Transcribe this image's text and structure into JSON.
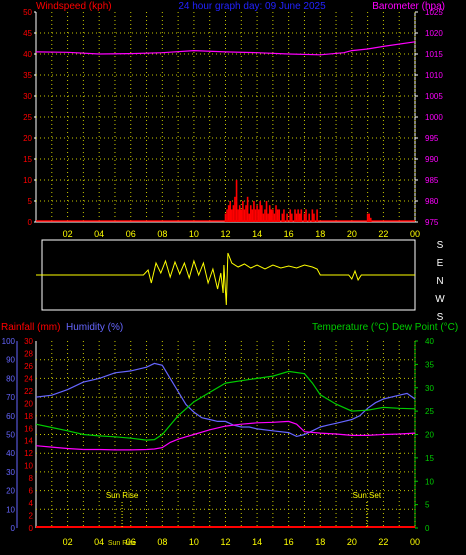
{
  "title": "24 hour graph day: 09 June 2025",
  "colors": {
    "background": "#000000",
    "grid": "#c8c800",
    "wind": "#ff0000",
    "baro": "#ff00ff",
    "dir": "#ffff00",
    "rain": "#ff0000",
    "humidity": "#6666ff",
    "temperature": "#00cc00",
    "dew": "#ff00ff",
    "title": "#2222ff",
    "hour": "#ffff00",
    "axis": "#ffffff"
  },
  "hour_labels": [
    "02",
    "04",
    "06",
    "08",
    "10",
    "12",
    "14",
    "16",
    "18",
    "20",
    "22",
    "00"
  ],
  "chart_data": [
    {
      "type": "bar",
      "title": "24 hour graph day: 09 June 2025",
      "left_axis_label": "Windspeed (kph)",
      "right_axis_label": "Barometer (hpa)",
      "x_ticks": [
        "02",
        "04",
        "06",
        "08",
        "10",
        "12",
        "14",
        "16",
        "18",
        "20",
        "22",
        "00"
      ],
      "ylim_left": [
        0,
        50
      ],
      "yticks_left": [
        "0",
        "5",
        "10",
        "15",
        "20",
        "25",
        "30",
        "35",
        "40",
        "45",
        "50"
      ],
      "ylim_right": [
        975,
        1025
      ],
      "yticks_right": [
        "975",
        "980",
        "985",
        "990",
        "995",
        "1000",
        "1005",
        "1010",
        "1015",
        "1020",
        "1025"
      ],
      "grid": true,
      "wind_bars": [
        [
          12.0,
          2
        ],
        [
          12.1,
          3
        ],
        [
          12.2,
          4
        ],
        [
          12.3,
          5
        ],
        [
          12.4,
          3
        ],
        [
          12.5,
          4
        ],
        [
          12.6,
          6
        ],
        [
          12.7,
          10
        ],
        [
          12.8,
          3
        ],
        [
          12.9,
          4
        ],
        [
          13.0,
          3
        ],
        [
          13.1,
          5
        ],
        [
          13.2,
          3
        ],
        [
          13.3,
          4
        ],
        [
          13.4,
          6
        ],
        [
          13.5,
          2
        ],
        [
          13.6,
          4
        ],
        [
          13.7,
          3
        ],
        [
          13.8,
          5
        ],
        [
          13.9,
          3
        ],
        [
          14.0,
          4
        ],
        [
          14.1,
          3
        ],
        [
          14.2,
          5
        ],
        [
          14.3,
          4
        ],
        [
          14.4,
          2
        ],
        [
          14.5,
          3
        ],
        [
          14.6,
          5
        ],
        [
          14.7,
          2
        ],
        [
          14.8,
          4
        ],
        [
          14.9,
          3
        ],
        [
          15.0,
          3
        ],
        [
          15.1,
          2
        ],
        [
          15.2,
          4
        ],
        [
          15.3,
          3
        ],
        [
          15.4,
          3
        ],
        [
          15.6,
          2
        ],
        [
          15.7,
          3
        ],
        [
          15.9,
          2
        ],
        [
          16.1,
          3
        ],
        [
          16.2,
          2
        ],
        [
          16.4,
          3
        ],
        [
          16.5,
          2
        ],
        [
          16.6,
          3
        ],
        [
          16.7,
          2
        ],
        [
          16.8,
          3
        ],
        [
          17.0,
          2
        ],
        [
          17.1,
          3
        ],
        [
          17.3,
          2
        ],
        [
          17.5,
          3
        ],
        [
          17.6,
          2
        ],
        [
          17.8,
          3
        ],
        [
          21.0,
          2
        ],
        [
          21.1,
          2
        ],
        [
          21.2,
          1
        ]
      ],
      "barometer": [
        [
          0,
          1015.5
        ],
        [
          2,
          1015.4
        ],
        [
          4,
          1015.0
        ],
        [
          6,
          1015.1
        ],
        [
          8,
          1015.3
        ],
        [
          10,
          1015.8
        ],
        [
          12,
          1015.5
        ],
        [
          14,
          1015.3
        ],
        [
          16,
          1015.0
        ],
        [
          18,
          1014.8
        ],
        [
          19.5,
          1015.3
        ],
        [
          20,
          1015.8
        ],
        [
          21,
          1016.2
        ],
        [
          22,
          1016.8
        ],
        [
          24,
          1017.9
        ]
      ]
    },
    {
      "type": "line",
      "right_side_labels": [
        "S",
        "E",
        "N",
        "W",
        "S"
      ],
      "wind_direction_trace": [
        [
          0,
          0
        ],
        [
          6.8,
          0
        ],
        [
          7.1,
          5
        ],
        [
          7.3,
          -8
        ],
        [
          7.6,
          12
        ],
        [
          7.9,
          2
        ],
        [
          8.2,
          14
        ],
        [
          8.5,
          -2
        ],
        [
          8.8,
          13
        ],
        [
          9.1,
          1
        ],
        [
          9.4,
          12
        ],
        [
          9.7,
          -3
        ],
        [
          10.0,
          14
        ],
        [
          10.3,
          0
        ],
        [
          10.6,
          12
        ],
        [
          10.9,
          -8
        ],
        [
          11.2,
          6
        ],
        [
          11.5,
          -14
        ],
        [
          11.7,
          2
        ],
        [
          11.85,
          -18
        ],
        [
          11.9,
          10
        ],
        [
          12.05,
          -30
        ],
        [
          12.15,
          22
        ],
        [
          12.4,
          12
        ],
        [
          12.8,
          8
        ],
        [
          13.2,
          11
        ],
        [
          13.6,
          7
        ],
        [
          14.0,
          10
        ],
        [
          14.5,
          6
        ],
        [
          15.0,
          10
        ],
        [
          15.5,
          7
        ],
        [
          16.0,
          9
        ],
        [
          16.5,
          7
        ],
        [
          17.0,
          10
        ],
        [
          17.5,
          8
        ],
        [
          17.8,
          6
        ],
        [
          18.0,
          0
        ],
        [
          19.8,
          0
        ],
        [
          20.0,
          -4
        ],
        [
          20.2,
          4
        ],
        [
          20.4,
          -5
        ],
        [
          20.6,
          0
        ],
        [
          24,
          0
        ]
      ]
    },
    {
      "type": "line",
      "left_axis_label": "Rainfall (mm)",
      "left_axis2_label": "Humidity (%)",
      "right_axis_label": "Temperature (°C)",
      "right_axis2_label": "Dew Point (°C)",
      "x_ticks": [
        "02",
        "04",
        "06",
        "08",
        "10",
        "12",
        "14",
        "16",
        "18",
        "20",
        "22",
        "00"
      ],
      "ylim_humidity": [
        0,
        100
      ],
      "yticks_humidity": [
        "0",
        "10",
        "20",
        "30",
        "40",
        "50",
        "60",
        "70",
        "80",
        "90",
        "100"
      ],
      "ylim_rain": [
        0,
        30
      ],
      "yticks_rain": [
        "0",
        "2",
        "4",
        "6",
        "8",
        "10",
        "12",
        "14",
        "16",
        "18",
        "20",
        "22",
        "24",
        "26",
        "28",
        "30"
      ],
      "ylim_temp": [
        0,
        40
      ],
      "yticks_temp": [
        "0",
        "5",
        "10",
        "15",
        "20",
        "25",
        "30",
        "35",
        "40"
      ],
      "annotations": [
        {
          "text": "Sun Rise",
          "x": 5.45
        },
        {
          "text": "Sun Set",
          "x": 20.95
        }
      ],
      "extra_label": "Sun Rise",
      "humidity": [
        [
          0,
          70
        ],
        [
          1,
          71
        ],
        [
          2,
          74
        ],
        [
          3,
          78
        ],
        [
          4,
          80
        ],
        [
          5,
          83
        ],
        [
          6,
          84
        ],
        [
          7,
          86
        ],
        [
          7.5,
          88
        ],
        [
          8,
          87
        ],
        [
          8.5,
          80
        ],
        [
          9,
          73
        ],
        [
          9.5,
          66
        ],
        [
          10,
          62
        ],
        [
          10.5,
          59
        ],
        [
          11,
          58
        ],
        [
          11.5,
          57
        ],
        [
          12,
          57
        ],
        [
          12.5,
          55
        ],
        [
          13,
          54
        ],
        [
          13.5,
          54
        ],
        [
          14,
          53
        ],
        [
          15,
          52
        ],
        [
          16,
          51
        ],
        [
          16.5,
          49
        ],
        [
          17,
          50
        ],
        [
          17.5,
          52
        ],
        [
          18,
          54
        ],
        [
          18.5,
          55
        ],
        [
          19,
          56
        ],
        [
          19.5,
          57
        ],
        [
          20,
          58
        ],
        [
          20.5,
          60
        ],
        [
          21,
          64
        ],
        [
          21.5,
          67
        ],
        [
          22,
          69
        ],
        [
          23,
          71
        ],
        [
          23.5,
          72
        ],
        [
          24,
          69
        ]
      ],
      "temperature": [
        [
          0,
          22.2
        ],
        [
          1,
          21.5
        ],
        [
          2,
          20.8
        ],
        [
          3,
          20.0
        ],
        [
          4,
          19.7
        ],
        [
          5,
          19.5
        ],
        [
          6,
          19.2
        ],
        [
          7,
          18.8
        ],
        [
          7.5,
          18.9
        ],
        [
          8,
          20.0
        ],
        [
          8.5,
          22
        ],
        [
          9,
          24
        ],
        [
          9.5,
          25.5
        ],
        [
          10,
          27
        ],
        [
          11,
          29
        ],
        [
          12,
          31
        ],
        [
          13,
          31.5
        ],
        [
          14,
          32
        ],
        [
          15,
          32.5
        ],
        [
          16,
          33.5
        ],
        [
          17,
          33
        ],
        [
          17.5,
          31
        ],
        [
          18,
          28.5
        ],
        [
          19,
          26.5
        ],
        [
          20,
          25.0
        ],
        [
          21,
          25.2
        ],
        [
          22,
          25.8
        ],
        [
          23,
          25.6
        ],
        [
          24,
          25.5
        ]
      ],
      "dew_point": [
        [
          0,
          17.6
        ],
        [
          1,
          17.3
        ],
        [
          2,
          17.0
        ],
        [
          3,
          16.8
        ],
        [
          4,
          16.8
        ],
        [
          5,
          16.7
        ],
        [
          6,
          16.7
        ],
        [
          7,
          16.8
        ],
        [
          7.5,
          16.9
        ],
        [
          8,
          17.2
        ],
        [
          8.5,
          18.3
        ],
        [
          9,
          19.0
        ],
        [
          9.5,
          19.5
        ],
        [
          10,
          20.0
        ],
        [
          11,
          21.0
        ],
        [
          12,
          21.8
        ],
        [
          13,
          22.2
        ],
        [
          14,
          22.5
        ],
        [
          15,
          22.6
        ],
        [
          16,
          22.8
        ],
        [
          16.5,
          22.2
        ],
        [
          17,
          20.6
        ],
        [
          18,
          20.3
        ],
        [
          19,
          20.1
        ],
        [
          20,
          19.8
        ],
        [
          21,
          19.8
        ],
        [
          22,
          20.0
        ],
        [
          23,
          20.1
        ],
        [
          24,
          20.3
        ]
      ],
      "rainfall": [
        [
          0,
          0
        ],
        [
          24,
          0
        ]
      ]
    }
  ]
}
